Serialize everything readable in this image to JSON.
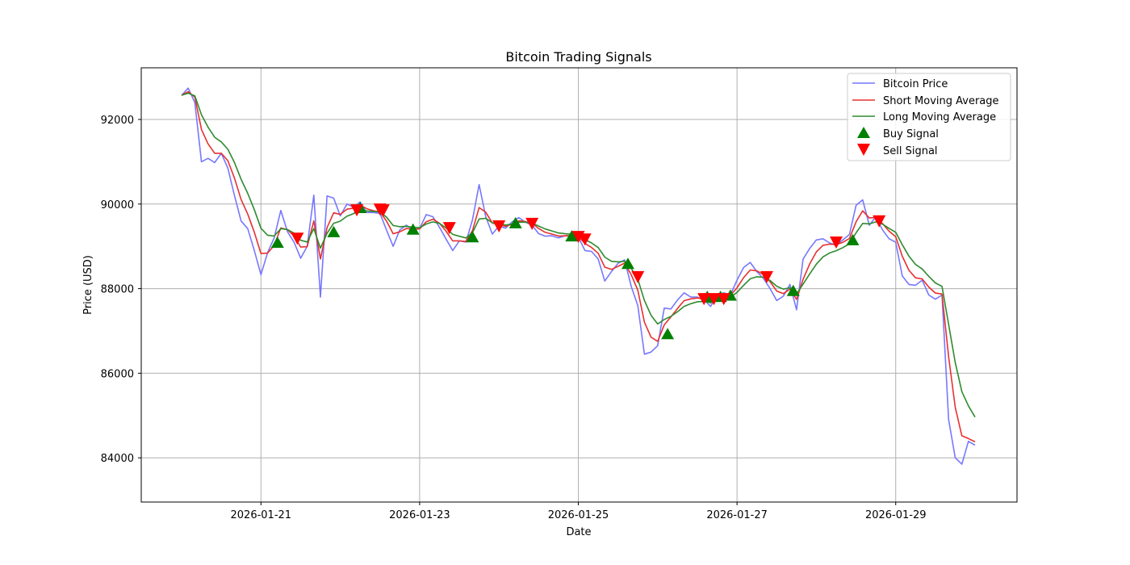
{
  "chart_data": {
    "type": "line",
    "title": "Bitcoin Trading Signals",
    "xlabel": "Date",
    "ylabel": "Price (USD)",
    "x_start": "2026-01-20 00:00",
    "interval_hours": 2,
    "xlim": [
      "2026-01-19 12:00",
      "2026-01-30 12:00"
    ],
    "ylim": [
      82950,
      93220
    ],
    "grid": true,
    "legend_placement": "top-right",
    "x_ticks": [
      "2026-01-21",
      "2026-01-23",
      "2026-01-25",
      "2026-01-27",
      "2026-01-29"
    ],
    "y_ticks": [
      84000,
      86000,
      88000,
      90000,
      92000
    ],
    "colors": {
      "price": "#7777ff",
      "short_ma": "#e83030",
      "long_ma": "#2e8b2e",
      "buy": "#008000",
      "sell": "#ff0000"
    },
    "legend": [
      "Bitcoin Price",
      "Short Moving Average",
      "Long Moving Average",
      "Buy Signal",
      "Sell Signal"
    ],
    "series": [
      {
        "name": "Bitcoin Price",
        "values": [
          92573,
          92740,
          92400,
          91000,
          91080,
          90980,
          91200,
          90850,
          90200,
          89600,
          89420,
          88900,
          88330,
          88850,
          89200,
          89850,
          89350,
          89100,
          88720,
          89000,
          90210,
          87800,
          90190,
          90140,
          89720,
          90000,
          89930,
          90050,
          89800,
          89800,
          89780,
          89380,
          89000,
          89390,
          89500,
          89390,
          89420,
          89750,
          89700,
          89450,
          89170,
          88900,
          89130,
          89100,
          89630,
          90460,
          89700,
          89290,
          89480,
          89430,
          89580,
          89680,
          89570,
          89500,
          89300,
          89240,
          89250,
          89200,
          89250,
          89250,
          89220,
          88900,
          88880,
          88700,
          88180,
          88400,
          88600,
          88680,
          88050,
          87600,
          86450,
          86500,
          86650,
          87540,
          87520,
          87730,
          87900,
          87800,
          87800,
          87730,
          87580,
          87850,
          87900,
          87850,
          88200,
          88500,
          88620,
          88400,
          88240,
          88000,
          87720,
          87820,
          88100,
          87500,
          88700,
          88950,
          89150,
          89180,
          89080,
          89030,
          89150,
          89280,
          89970,
          90100,
          89500,
          89700,
          89390,
          89180,
          89100,
          88300,
          88100,
          88080,
          88200,
          87850,
          87750,
          87850,
          84900,
          84000,
          83850,
          84390,
          84300
        ]
      },
      {
        "name": "Short Moving Average"
      },
      {
        "name": "Long Moving Average"
      }
    ],
    "buy_signals": [
      {
        "date": "2026-01-21 05:00",
        "price": 89080
      },
      {
        "date": "2026-01-21 22:00",
        "price": 89330
      },
      {
        "date": "2026-01-22 06:00",
        "price": 89900
      },
      {
        "date": "2026-01-22 22:00",
        "price": 89390
      },
      {
        "date": "2026-01-23 16:00",
        "price": 89210
      },
      {
        "date": "2026-01-24 05:00",
        "price": 89540
      },
      {
        "date": "2026-01-24 22:00",
        "price": 89230
      },
      {
        "date": "2026-01-25 15:00",
        "price": 88580
      },
      {
        "date": "2026-01-26 03:00",
        "price": 86920
      },
      {
        "date": "2026-01-26 15:00",
        "price": 87800
      },
      {
        "date": "2026-01-26 19:00",
        "price": 87800
      },
      {
        "date": "2026-01-26 22:00",
        "price": 87830
      },
      {
        "date": "2026-01-27 17:00",
        "price": 87940
      },
      {
        "date": "2026-01-28 11:00",
        "price": 89140
      }
    ],
    "sell_signals": [
      {
        "date": "2026-01-21 11:00",
        "price": 89190
      },
      {
        "date": "2026-01-22 05:00",
        "price": 89860
      },
      {
        "date": "2026-01-22 12:00",
        "price": 89880
      },
      {
        "date": "2026-01-22 13:00",
        "price": 89860
      },
      {
        "date": "2026-01-23 09:00",
        "price": 89440
      },
      {
        "date": "2026-01-24 00:00",
        "price": 89480
      },
      {
        "date": "2026-01-24 10:00",
        "price": 89540
      },
      {
        "date": "2026-01-25 00:00",
        "price": 89230
      },
      {
        "date": "2026-01-25 02:00",
        "price": 89170
      },
      {
        "date": "2026-01-25 18:00",
        "price": 88280
      },
      {
        "date": "2026-01-26 14:00",
        "price": 87760
      },
      {
        "date": "2026-01-26 17:00",
        "price": 87760
      },
      {
        "date": "2026-01-26 20:00",
        "price": 87760
      },
      {
        "date": "2026-01-27 09:00",
        "price": 88280
      },
      {
        "date": "2026-01-28 06:00",
        "price": 89100
      },
      {
        "date": "2026-01-28 19:00",
        "price": 89600
      }
    ]
  }
}
